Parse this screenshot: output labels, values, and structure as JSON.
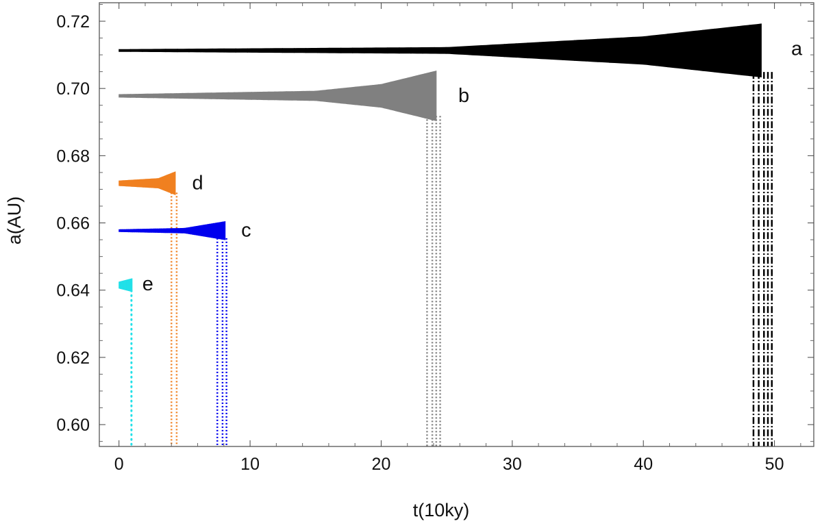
{
  "chart_data": {
    "type": "scatter",
    "title": "",
    "xlabel": "t(10ky)",
    "ylabel": "a(AU)",
    "xlim": [
      -1.5,
      53
    ],
    "ylim": [
      0.5935,
      0.7255
    ],
    "x_ticks": [
      0,
      10,
      20,
      30,
      40,
      50
    ],
    "y_ticks": [
      0.6,
      0.62,
      0.64,
      0.66,
      0.68,
      0.7,
      0.72
    ],
    "y_tick_labels": [
      "0.60",
      "0.62",
      "0.64",
      "0.66",
      "0.68",
      "0.70",
      "0.72"
    ],
    "grid": false,
    "series": [
      {
        "name": "a",
        "label": "a",
        "color": "#000000",
        "stable_until": 49.0,
        "center": 0.7113,
        "envelope": [
          [
            0,
            0.0004
          ],
          [
            25,
            0.001
          ],
          [
            40,
            0.0042
          ],
          [
            49,
            0.008
          ]
        ],
        "ejection_x": [
          48.4,
          48.8,
          49.2,
          49.5,
          49.8
        ],
        "label_at": [
          51.7,
          0.712
        ]
      },
      {
        "name": "b",
        "label": "b",
        "color": "#808080",
        "stable_until": 24.2,
        "center": 0.6978,
        "envelope": [
          [
            0,
            0.0005
          ],
          [
            15,
            0.0015
          ],
          [
            20,
            0.0035
          ],
          [
            24.2,
            0.0075
          ]
        ],
        "ejection_x": [
          23.5,
          23.9,
          24.2,
          24.5
        ],
        "label_at": [
          26.3,
          0.698
        ]
      },
      {
        "name": "d",
        "label": "d",
        "color": "#f08020",
        "stable_until": 4.3,
        "center": 0.6718,
        "envelope": [
          [
            0,
            0.0008
          ],
          [
            3,
            0.0015
          ],
          [
            4.3,
            0.0035
          ]
        ],
        "ejection_x": [
          4.0,
          4.4
        ],
        "label_at": [
          6.0,
          0.672
        ]
      },
      {
        "name": "c",
        "label": "c",
        "color": "#0000ee",
        "stable_until": 8.1,
        "center": 0.6577,
        "envelope": [
          [
            0,
            0.0004
          ],
          [
            5,
            0.0008
          ],
          [
            8.1,
            0.0028
          ]
        ],
        "ejection_x": [
          7.5,
          7.9,
          8.2
        ],
        "label_at": [
          9.7,
          0.658
        ]
      },
      {
        "name": "e",
        "label": "e",
        "color": "#22e0e8",
        "stable_until": 1.0,
        "center": 0.6415,
        "envelope": [
          [
            0,
            0.001
          ],
          [
            1.0,
            0.002
          ]
        ],
        "ejection_x": [
          0.95
        ],
        "label_at": [
          2.2,
          0.642
        ]
      }
    ]
  }
}
